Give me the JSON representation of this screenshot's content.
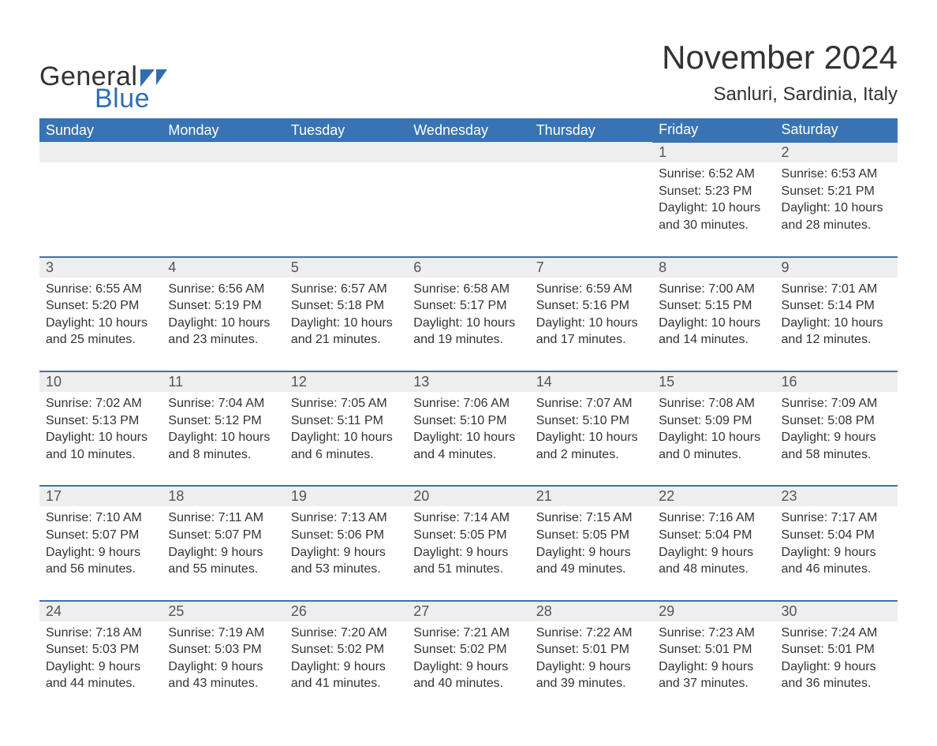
{
  "brand": {
    "word1": "General",
    "word2": "Blue",
    "flag_color": "#2f6fb1",
    "text_color_dark": "#333333"
  },
  "header": {
    "title": "November 2024",
    "subtitle": "Sanluri, Sardinia, Italy"
  },
  "colors": {
    "header_bg": "#3874b3",
    "header_text": "#ffffff",
    "row_sep": "#3874b3",
    "daynum_bg": "#eeeeee",
    "body_text": "#333333",
    "background": "#ffffff"
  },
  "fonts": {
    "title_size": 42,
    "subtitle_size": 24,
    "weekday_size": 18,
    "daynum_size": 18,
    "detail_size": 16
  },
  "layout": {
    "weeks": 5,
    "days_per_week": 7,
    "first_weekday_index": 5
  },
  "weekdays": [
    "Sunday",
    "Monday",
    "Tuesday",
    "Wednesday",
    "Thursday",
    "Friday",
    "Saturday"
  ],
  "days": [
    {
      "n": 1,
      "sunrise": "6:52 AM",
      "sunset": "5:23 PM",
      "dl_h": 10,
      "dl_m": 30
    },
    {
      "n": 2,
      "sunrise": "6:53 AM",
      "sunset": "5:21 PM",
      "dl_h": 10,
      "dl_m": 28
    },
    {
      "n": 3,
      "sunrise": "6:55 AM",
      "sunset": "5:20 PM",
      "dl_h": 10,
      "dl_m": 25
    },
    {
      "n": 4,
      "sunrise": "6:56 AM",
      "sunset": "5:19 PM",
      "dl_h": 10,
      "dl_m": 23
    },
    {
      "n": 5,
      "sunrise": "6:57 AM",
      "sunset": "5:18 PM",
      "dl_h": 10,
      "dl_m": 21
    },
    {
      "n": 6,
      "sunrise": "6:58 AM",
      "sunset": "5:17 PM",
      "dl_h": 10,
      "dl_m": 19
    },
    {
      "n": 7,
      "sunrise": "6:59 AM",
      "sunset": "5:16 PM",
      "dl_h": 10,
      "dl_m": 17
    },
    {
      "n": 8,
      "sunrise": "7:00 AM",
      "sunset": "5:15 PM",
      "dl_h": 10,
      "dl_m": 14
    },
    {
      "n": 9,
      "sunrise": "7:01 AM",
      "sunset": "5:14 PM",
      "dl_h": 10,
      "dl_m": 12
    },
    {
      "n": 10,
      "sunrise": "7:02 AM",
      "sunset": "5:13 PM",
      "dl_h": 10,
      "dl_m": 10
    },
    {
      "n": 11,
      "sunrise": "7:04 AM",
      "sunset": "5:12 PM",
      "dl_h": 10,
      "dl_m": 8
    },
    {
      "n": 12,
      "sunrise": "7:05 AM",
      "sunset": "5:11 PM",
      "dl_h": 10,
      "dl_m": 6
    },
    {
      "n": 13,
      "sunrise": "7:06 AM",
      "sunset": "5:10 PM",
      "dl_h": 10,
      "dl_m": 4
    },
    {
      "n": 14,
      "sunrise": "7:07 AM",
      "sunset": "5:10 PM",
      "dl_h": 10,
      "dl_m": 2
    },
    {
      "n": 15,
      "sunrise": "7:08 AM",
      "sunset": "5:09 PM",
      "dl_h": 10,
      "dl_m": 0
    },
    {
      "n": 16,
      "sunrise": "7:09 AM",
      "sunset": "5:08 PM",
      "dl_h": 9,
      "dl_m": 58
    },
    {
      "n": 17,
      "sunrise": "7:10 AM",
      "sunset": "5:07 PM",
      "dl_h": 9,
      "dl_m": 56
    },
    {
      "n": 18,
      "sunrise": "7:11 AM",
      "sunset": "5:07 PM",
      "dl_h": 9,
      "dl_m": 55
    },
    {
      "n": 19,
      "sunrise": "7:13 AM",
      "sunset": "5:06 PM",
      "dl_h": 9,
      "dl_m": 53
    },
    {
      "n": 20,
      "sunrise": "7:14 AM",
      "sunset": "5:05 PM",
      "dl_h": 9,
      "dl_m": 51
    },
    {
      "n": 21,
      "sunrise": "7:15 AM",
      "sunset": "5:05 PM",
      "dl_h": 9,
      "dl_m": 49
    },
    {
      "n": 22,
      "sunrise": "7:16 AM",
      "sunset": "5:04 PM",
      "dl_h": 9,
      "dl_m": 48
    },
    {
      "n": 23,
      "sunrise": "7:17 AM",
      "sunset": "5:04 PM",
      "dl_h": 9,
      "dl_m": 46
    },
    {
      "n": 24,
      "sunrise": "7:18 AM",
      "sunset": "5:03 PM",
      "dl_h": 9,
      "dl_m": 44
    },
    {
      "n": 25,
      "sunrise": "7:19 AM",
      "sunset": "5:03 PM",
      "dl_h": 9,
      "dl_m": 43
    },
    {
      "n": 26,
      "sunrise": "7:20 AM",
      "sunset": "5:02 PM",
      "dl_h": 9,
      "dl_m": 41
    },
    {
      "n": 27,
      "sunrise": "7:21 AM",
      "sunset": "5:02 PM",
      "dl_h": 9,
      "dl_m": 40
    },
    {
      "n": 28,
      "sunrise": "7:22 AM",
      "sunset": "5:01 PM",
      "dl_h": 9,
      "dl_m": 39
    },
    {
      "n": 29,
      "sunrise": "7:23 AM",
      "sunset": "5:01 PM",
      "dl_h": 9,
      "dl_m": 37
    },
    {
      "n": 30,
      "sunrise": "7:24 AM",
      "sunset": "5:01 PM",
      "dl_h": 9,
      "dl_m": 36
    }
  ],
  "labels": {
    "sunrise_prefix": "Sunrise: ",
    "sunset_prefix": "Sunset: ",
    "daylight_prefix": "Daylight: ",
    "hours_word": " hours",
    "and_word": "and ",
    "minutes_suffix": " minutes."
  }
}
